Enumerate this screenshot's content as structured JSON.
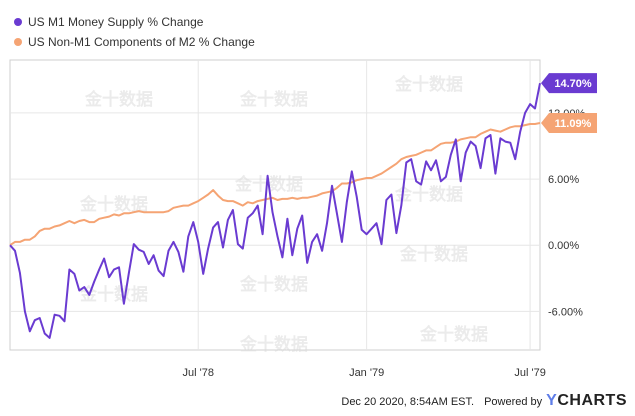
{
  "chart_data": {
    "type": "line",
    "series": [
      {
        "name": "US M1 Money Supply % Change",
        "color": "#6a3bd1",
        "last_label": "14.70%",
        "values": [
          0.0,
          -0.5,
          -2.5,
          -6.0,
          -7.8,
          -6.8,
          -6.6,
          -8.0,
          -8.4,
          -6.3,
          -6.4,
          -6.9,
          -2.2,
          -2.6,
          -4.1,
          -3.8,
          -4.5,
          -3.3,
          -2.2,
          -1.2,
          -2.9,
          -2.2,
          -2.0,
          -5.3,
          -2.5,
          0.1,
          -0.4,
          -0.6,
          -1.7,
          -0.9,
          -2.3,
          -2.8,
          -0.5,
          0.3,
          -0.6,
          -2.4,
          0.8,
          2.1,
          0.3,
          -2.6,
          -0.3,
          1.6,
          2.1,
          -0.2,
          2.3,
          3.2,
          0.1,
          -0.3,
          2.5,
          2.9,
          3.6,
          1.0,
          6.3,
          3.0,
          0.8,
          -1.1,
          2.4,
          -0.9,
          1.5,
          2.7,
          -1.6,
          0.3,
          1.0,
          -0.5,
          2.0,
          5.4,
          2.9,
          0.3,
          3.9,
          6.7,
          4.4,
          1.4,
          1.0,
          1.5,
          2.0,
          0.1,
          4.1,
          4.6,
          1.1,
          3.6,
          7.5,
          7.8,
          5.8,
          5.5,
          7.6,
          6.8,
          7.7,
          5.8,
          6.2,
          8.2,
          9.6,
          5.8,
          8.4,
          9.4,
          9.0,
          7.0,
          9.7,
          10.0,
          6.5,
          9.7,
          9.4,
          9.3,
          7.8,
          10.3,
          12.0,
          12.8,
          12.4,
          14.7
        ]
      },
      {
        "name": "US Non-M1 Components of M2 % Change",
        "color": "#f5a474",
        "last_label": "11.09%",
        "values": [
          0.0,
          0.3,
          0.3,
          0.5,
          0.5,
          0.8,
          1.3,
          1.5,
          1.5,
          1.7,
          1.8,
          2.0,
          2.2,
          2.0,
          2.2,
          2.3,
          2.1,
          2.1,
          2.4,
          2.5,
          2.6,
          2.8,
          2.7,
          2.9,
          2.9,
          3.0,
          3.1,
          3.0,
          3.0,
          3.0,
          3.0,
          3.0,
          3.1,
          3.4,
          3.5,
          3.6,
          3.6,
          3.8,
          4.0,
          4.3,
          4.6,
          5.0,
          4.5,
          4.1,
          4.0,
          4.0,
          3.8,
          3.6,
          3.9,
          3.8,
          4.0,
          4.1,
          4.2,
          4.3,
          4.1,
          4.2,
          4.2,
          4.3,
          4.2,
          4.3,
          4.3,
          4.4,
          4.5,
          4.7,
          4.8,
          4.9,
          5.2,
          5.6,
          5.6,
          5.7,
          5.9,
          6.0,
          6.1,
          6.1,
          6.3,
          6.5,
          6.8,
          7.1,
          7.4,
          7.8,
          8.0,
          8.1,
          8.2,
          8.4,
          8.6,
          8.6,
          8.9,
          9.2,
          9.3,
          9.3,
          9.4,
          9.6,
          9.7,
          9.8,
          9.8,
          10.1,
          10.3,
          10.5,
          10.4,
          10.3,
          10.5,
          10.7,
          10.8,
          10.8,
          10.9,
          11.0,
          11.0,
          11.09
        ]
      }
    ],
    "x_tick_labels": [
      "Jul '78",
      "Jan '79",
      "Jul '79"
    ],
    "x_tick_indices": [
      38,
      72,
      105
    ],
    "y_tick_labels": [
      "-6.00%",
      "0.00%",
      "6.00%",
      "12.00%"
    ],
    "y_tick_values": [
      -6,
      0,
      6,
      12
    ],
    "ylim": [
      -9.5,
      16.8
    ],
    "grid": true,
    "legend_position": "top-left"
  },
  "watermark": "金十数据",
  "footer": {
    "timestamp": "Dec 20 2020, 8:54AM EST.",
    "powered": "Powered by",
    "brand_y": "Y",
    "brand_rest": "CHARTS"
  },
  "colors": {
    "grid": "#e6e6e6",
    "axis": "#cfcfcf",
    "m1": "#6a3bd1",
    "nonm1": "#f5a474"
  }
}
